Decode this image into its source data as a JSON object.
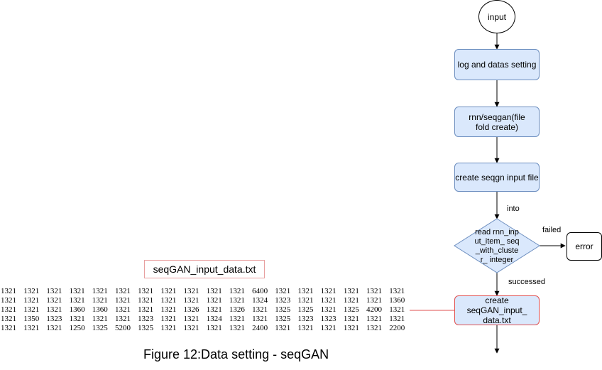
{
  "flow": {
    "input_label": "input",
    "step1_label": "log and datas setting",
    "step2_label": "rnn/seqgan(file fold create)",
    "step3_label": "create seqgn input file",
    "edge_into_label": "into",
    "decision_label": "read rnn_input_item_ seq_with_cluster_ integer",
    "edge_failed_label": "failed",
    "error_label": "error",
    "edge_success_label": "successed",
    "step4_label": "create seqGAN_input_ data.txt"
  },
  "file_panel": {
    "filename": "seqGAN_input_data.txt",
    "rows": [
      [
        "1321",
        "1321",
        "1321",
        "1321",
        "1321",
        "1321",
        "1321",
        "1321",
        "1321",
        "1321",
        "1321",
        "6400",
        "1321",
        "1321",
        "1321",
        "1321",
        "1321",
        "1321"
      ],
      [
        "1321",
        "1321",
        "1321",
        "1321",
        "1321",
        "1321",
        "1321",
        "1321",
        "1321",
        "1321",
        "1321",
        "1324",
        "1323",
        "1321",
        "1321",
        "1321",
        "1321",
        "1360"
      ],
      [
        "1321",
        "1321",
        "1321",
        "1360",
        "1360",
        "1321",
        "1321",
        "1321",
        "1326",
        "1321",
        "1326",
        "1321",
        "1325",
        "1325",
        "1321",
        "1325",
        "4200",
        "1321"
      ],
      [
        "1321",
        "1350",
        "1323",
        "1321",
        "1321",
        "1321",
        "1323",
        "1321",
        "1321",
        "1324",
        "1321",
        "1321",
        "1325",
        "1323",
        "1323",
        "1321",
        "1321",
        "1321"
      ],
      [
        "1321",
        "1321",
        "1321",
        "1250",
        "1325",
        "5200",
        "1325",
        "1321",
        "1321",
        "1321",
        "1321",
        "2400",
        "1321",
        "1321",
        "1321",
        "1321",
        "1321",
        "2200"
      ]
    ]
  },
  "caption": "Figure 12:Data setting - seqGAN",
  "colors": {
    "process_fill": "#dae8fc",
    "process_border": "#6c8ebf",
    "highlight_border": "#e05050",
    "connector": "#e05050"
  }
}
